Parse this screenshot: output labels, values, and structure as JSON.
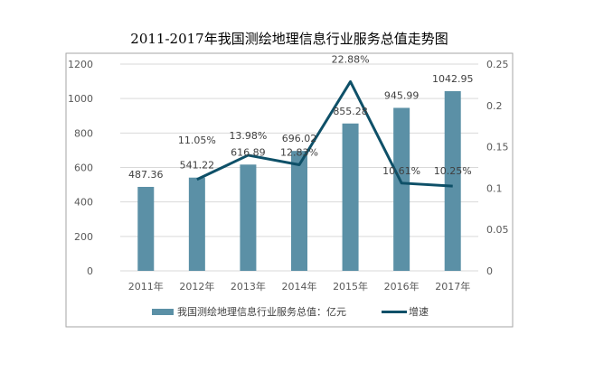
{
  "chart_data": {
    "type": "bar",
    "title": "2011-2017年我国测绘地理信息行业服务总值走势图",
    "categories": [
      "2011年",
      "2012年",
      "2013年",
      "2014年",
      "2015年",
      "2016年",
      "2017年"
    ],
    "series": [
      {
        "name": "我国测绘地理信息行业服务总值：亿元",
        "type": "bar",
        "axis": "left",
        "color": "#5b90a6",
        "values": [
          487.36,
          541.22,
          616.89,
          696.02,
          855.28,
          945.99,
          1042.95
        ],
        "labels": [
          "487.36",
          "541.22",
          "616.89",
          "696.02",
          "855.28",
          "945.99",
          "1042.95"
        ]
      },
      {
        "name": "增速",
        "type": "line",
        "axis": "right",
        "color": "#0e5068",
        "values": [
          null,
          0.1105,
          0.1398,
          0.1283,
          0.2288,
          0.1061,
          0.1025
        ],
        "labels": [
          "",
          "11.05%",
          "13.98%",
          "12.83%",
          "22.88%",
          "10.61%",
          "10.25%"
        ]
      }
    ],
    "y_left": {
      "range": [
        0,
        1200
      ],
      "ticks": [
        "0",
        "200",
        "400",
        "600",
        "800",
        "1000",
        "1200"
      ]
    },
    "y_right": {
      "range": [
        0,
        0.25
      ],
      "ticks": [
        "0",
        "0.05",
        "0.1",
        "0.15",
        "0.2",
        "0.25"
      ]
    },
    "grid": true,
    "legend": "bottom"
  }
}
